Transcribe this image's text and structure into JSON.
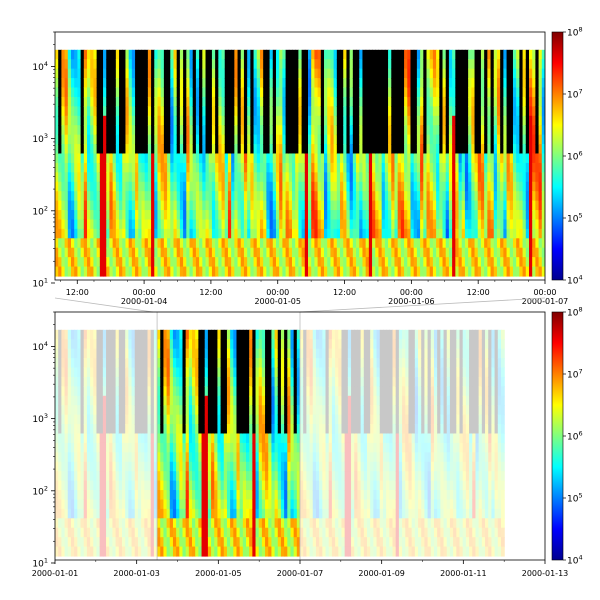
{
  "chart_data": [
    {
      "type": "heatmap",
      "panel": "top",
      "title": "",
      "xlabel": "",
      "ylabel": "",
      "y_scale": "log",
      "ylim": [
        11,
        30000
      ],
      "y_ticks": [
        {
          "base": "10",
          "exp": "1"
        },
        {
          "base": "10",
          "exp": "2"
        },
        {
          "base": "10",
          "exp": "3"
        },
        {
          "base": "10",
          "exp": "4"
        }
      ],
      "xlim_hours_from_2000_01_03_12_00": [
        -4,
        84
      ],
      "x_ticks": [
        {
          "time": "12:00",
          "date": ""
        },
        {
          "time": "00:00",
          "date": "2000-01-04"
        },
        {
          "time": "12:00",
          "date": ""
        },
        {
          "time": "00:00",
          "date": "2000-01-05"
        },
        {
          "time": "12:00",
          "date": ""
        },
        {
          "time": "00:00",
          "date": "2000-01-06"
        },
        {
          "time": "12:00",
          "date": ""
        },
        {
          "time": "00:00",
          "date": "2000-01-07"
        }
      ],
      "colorbar": {
        "scale": "log",
        "range": [
          10000,
          100000000
        ],
        "ticks": [
          {
            "base": "10",
            "exp": "4"
          },
          {
            "base": "10",
            "exp": "5"
          },
          {
            "base": "10",
            "exp": "6"
          },
          {
            "base": "10",
            "exp": "7"
          },
          {
            "base": "10",
            "exp": "8"
          }
        ],
        "colormap": "jet"
      }
    },
    {
      "type": "heatmap",
      "panel": "bottom",
      "title": "",
      "xlabel": "",
      "ylabel": "",
      "y_scale": "log",
      "ylim": [
        11,
        30000
      ],
      "y_ticks": [
        {
          "base": "10",
          "exp": "1"
        },
        {
          "base": "10",
          "exp": "2"
        },
        {
          "base": "10",
          "exp": "3"
        },
        {
          "base": "10",
          "exp": "4"
        }
      ],
      "xlim": [
        "2000-01-01",
        "2000-01-13"
      ],
      "x_ticks": [
        "2000-01-01",
        "2000-01-03",
        "2000-01-05",
        "2000-01-07",
        "2000-01-09",
        "2000-01-11",
        "2000-01-13"
      ],
      "highlight_range": [
        "2000-01-03 12:00",
        "2000-01-07 00:00"
      ],
      "colorbar": {
        "scale": "log",
        "range": [
          10000,
          100000000
        ],
        "ticks": [
          {
            "base": "10",
            "exp": "4"
          },
          {
            "base": "10",
            "exp": "5"
          },
          {
            "base": "10",
            "exp": "6"
          },
          {
            "base": "10",
            "exp": "7"
          },
          {
            "base": "10",
            "exp": "8"
          }
        ],
        "colormap": "jet"
      }
    }
  ]
}
